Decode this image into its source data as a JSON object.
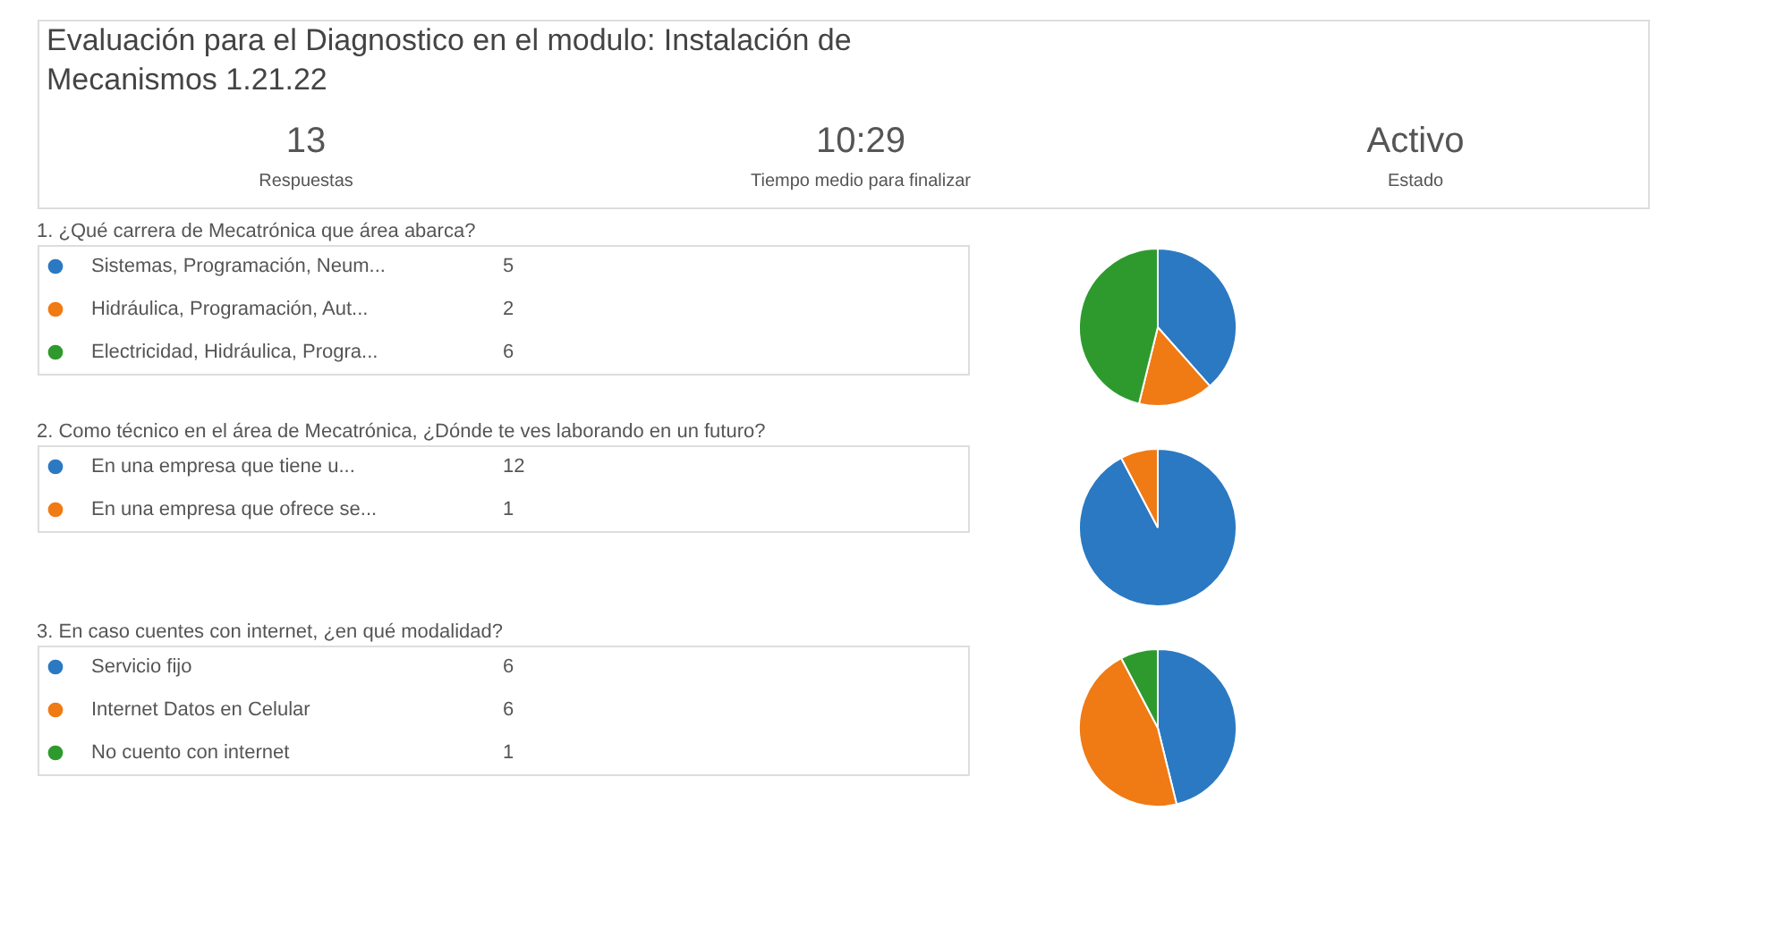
{
  "chart_data": [
    {
      "type": "other",
      "title": "Evaluación para el Diagnostico en el modulo: Instalación de Mecanismos 1.21.22",
      "annotations": [
        "13",
        "Respuestas",
        "10:29",
        "Tiempo medio para finalizar",
        "Activo",
        "Estado"
      ]
    },
    {
      "type": "pie",
      "title": "1. ¿Qué carrera de Mecatrónica que área abarca?",
      "categories": [
        "Sistemas, Programación, Neum...",
        "Hidráulica, Programación, Aut...",
        "Electricidad, Hidráulica, Progra..."
      ],
      "values": [
        5,
        2,
        6
      ],
      "colors": [
        "#2b79c2",
        "#f07a14",
        "#2e9a2e"
      ],
      "data_labels": true,
      "legend": "left"
    },
    {
      "type": "pie",
      "title": "2. Como técnico en el área de Mecatrónica, ¿Dónde te ves laborando en un futuro?",
      "categories": [
        "En una empresa que tiene u...",
        "En una empresa que ofrece se..."
      ],
      "values": [
        12,
        1
      ],
      "colors": [
        "#2b79c2",
        "#f07a14"
      ],
      "data_labels": true,
      "legend": "left"
    },
    {
      "type": "pie",
      "title": "3. En caso cuentes con internet, ¿en qué modalidad?",
      "categories": [
        "Servicio fijo",
        "Internet Datos en Celular",
        "No cuento con internet"
      ],
      "values": [
        6,
        6,
        1
      ],
      "colors": [
        "#2b79c2",
        "#f07a14",
        "#2e9a2e"
      ],
      "data_labels": true,
      "legend": "left"
    }
  ]
}
